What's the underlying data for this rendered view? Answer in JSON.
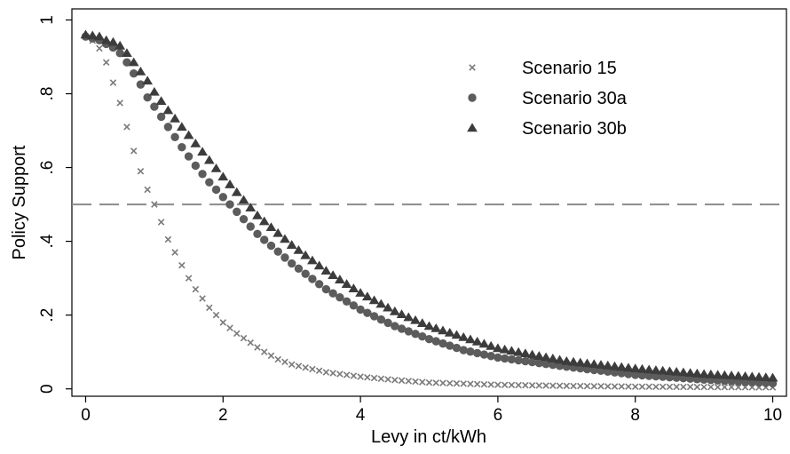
{
  "chart_data": {
    "type": "scatter",
    "title": "",
    "xlabel": "Levy in ct/kWh",
    "ylabel": "Policy Support",
    "xlim": [
      -0.2,
      10.2
    ],
    "ylim": [
      -0.02,
      1.03
    ],
    "x_ticks": [
      0,
      2,
      4,
      6,
      8,
      10
    ],
    "x_tick_labels": [
      "0",
      "2",
      "4",
      "6",
      "8",
      "10"
    ],
    "y_ticks": [
      0,
      0.2,
      0.4,
      0.6,
      0.8,
      1
    ],
    "y_tick_labels": [
      "0",
      ".2",
      ".4",
      ".6",
      ".8",
      "1"
    ],
    "grid": false,
    "legend_position": "top-right",
    "reference_line": {
      "y": 0.5,
      "style": "dashed",
      "color": "#8c8c8c"
    },
    "marker_step": 0.1,
    "x_range": [
      0,
      10
    ],
    "series": [
      {
        "name": "Scenario 15",
        "marker": "x",
        "color": "#7a7a7a",
        "control_points": [
          [
            0,
            0.955
          ],
          [
            0.1,
            0.944
          ],
          [
            0.2,
            0.923
          ],
          [
            0.3,
            0.885
          ],
          [
            0.4,
            0.83
          ],
          [
            0.5,
            0.775
          ],
          [
            0.6,
            0.71
          ],
          [
            0.7,
            0.645
          ],
          [
            0.8,
            0.59
          ],
          [
            0.9,
            0.54
          ],
          [
            1,
            0.5
          ],
          [
            1.1,
            0.452
          ],
          [
            1.2,
            0.405
          ],
          [
            1.3,
            0.37
          ],
          [
            1.4,
            0.335
          ],
          [
            1.5,
            0.3
          ],
          [
            1.6,
            0.27
          ],
          [
            1.7,
            0.245
          ],
          [
            1.8,
            0.22
          ],
          [
            2,
            0.18
          ],
          [
            2.2,
            0.15
          ],
          [
            2.4,
            0.125
          ],
          [
            2.6,
            0.1
          ],
          [
            2.8,
            0.08
          ],
          [
            3,
            0.066
          ],
          [
            3.5,
            0.045
          ],
          [
            4,
            0.033
          ],
          [
            4.5,
            0.024
          ],
          [
            5,
            0.017
          ],
          [
            6,
            0.011
          ],
          [
            7,
            0.008
          ],
          [
            8,
            0.006
          ],
          [
            9,
            0.005
          ],
          [
            10,
            0.004
          ]
        ]
      },
      {
        "name": "Scenario 30a",
        "marker": "circle",
        "color": "#5c5c5c",
        "control_points": [
          [
            0,
            0.955
          ],
          [
            0.2,
            0.945
          ],
          [
            0.4,
            0.925
          ],
          [
            0.5,
            0.91
          ],
          [
            0.6,
            0.885
          ],
          [
            0.7,
            0.855
          ],
          [
            0.8,
            0.825
          ],
          [
            0.9,
            0.79
          ],
          [
            1,
            0.765
          ],
          [
            1.2,
            0.71
          ],
          [
            1.4,
            0.655
          ],
          [
            1.6,
            0.605
          ],
          [
            1.8,
            0.56
          ],
          [
            2,
            0.52
          ],
          [
            2.5,
            0.42
          ],
          [
            3,
            0.34
          ],
          [
            3.5,
            0.27
          ],
          [
            4,
            0.215
          ],
          [
            4.5,
            0.17
          ],
          [
            5,
            0.135
          ],
          [
            5.5,
            0.105
          ],
          [
            6,
            0.085
          ],
          [
            7,
            0.06
          ],
          [
            8,
            0.038
          ],
          [
            9,
            0.025
          ],
          [
            10,
            0.015
          ]
        ]
      },
      {
        "name": "Scenario 30b",
        "marker": "triangle",
        "color": "#3c3c3c",
        "control_points": [
          [
            0,
            0.96
          ],
          [
            0.2,
            0.955
          ],
          [
            0.3,
            0.945
          ],
          [
            0.4,
            0.94
          ],
          [
            0.5,
            0.93
          ],
          [
            0.6,
            0.91
          ],
          [
            0.7,
            0.885
          ],
          [
            0.8,
            0.86
          ],
          [
            0.9,
            0.835
          ],
          [
            1,
            0.805
          ],
          [
            1.2,
            0.755
          ],
          [
            1.4,
            0.71
          ],
          [
            1.6,
            0.665
          ],
          [
            1.8,
            0.62
          ],
          [
            2,
            0.575
          ],
          [
            2.5,
            0.47
          ],
          [
            3,
            0.39
          ],
          [
            3.5,
            0.32
          ],
          [
            4,
            0.26
          ],
          [
            4.5,
            0.21
          ],
          [
            5,
            0.17
          ],
          [
            5.5,
            0.14
          ],
          [
            6,
            0.11
          ],
          [
            7,
            0.075
          ],
          [
            8,
            0.055
          ],
          [
            9,
            0.04
          ],
          [
            10,
            0.03
          ]
        ]
      }
    ]
  }
}
